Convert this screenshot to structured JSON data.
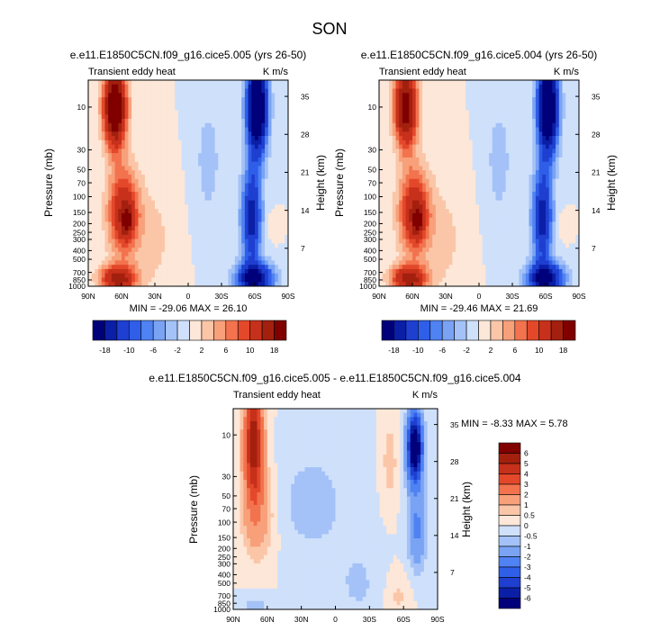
{
  "figure": {
    "title": "SON"
  },
  "colors": {
    "negative": [
      "#00007a",
      "#0a1fa6",
      "#1e3fd0",
      "#2f5ee8",
      "#4f82f2",
      "#7aa3f4",
      "#a4c2f7",
      "#cfe0fb"
    ],
    "positive": [
      "#fde7d8",
      "#fbc6a8",
      "#f7a07a",
      "#f2734e",
      "#e4482a",
      "#c7301b",
      "#a3200f",
      "#800000"
    ]
  },
  "chart_data": [
    {
      "type": "heatmap",
      "title": "e.e11.E1850C5CN.f09_g16.cice5.005 (yrs 26-50)",
      "left_label": "Transient eddy heat",
      "right_label": "K m/s",
      "xlabel": "",
      "ylabel": "Pressure (mb)",
      "ylabel_right": "Height (km)",
      "x_ticks": [
        "90N",
        "60N",
        "30N",
        "0",
        "30S",
        "60S",
        "90S"
      ],
      "y_ticks": [
        "10",
        "30",
        "50",
        "70",
        "100",
        "150",
        "200",
        "250",
        "300",
        "400",
        "500",
        "700",
        "850",
        "1000"
      ],
      "y_ticks_right": [
        "35",
        "28",
        "21",
        "14",
        "7"
      ],
      "min_max": "MIN = -29.06  MAX = 26.10",
      "colorbar": {
        "orientation": "horizontal",
        "labels": [
          "-18",
          "-10",
          "-6",
          "-2",
          "2",
          "6",
          "10",
          "18"
        ]
      },
      "features": [
        {
          "lat": 66,
          "p": 10,
          "value": 26
        },
        {
          "lat": 58,
          "p": 200,
          "value": 10
        },
        {
          "lat": 62,
          "p": 800,
          "value": 14
        },
        {
          "lat": -62,
          "p": 10,
          "value": -29
        },
        {
          "lat": -58,
          "p": 200,
          "value": -14
        },
        {
          "lat": -62,
          "p": 800,
          "value": -18
        }
      ]
    },
    {
      "type": "heatmap",
      "title": "e.e11.E1850C5CN.f09_g16.cice5.004 (yrs 26-50)",
      "left_label": "Transient eddy heat",
      "right_label": "K m/s",
      "xlabel": "",
      "ylabel": "Pressure (mb)",
      "ylabel_right": "Height (km)",
      "x_ticks": [
        "90N",
        "60N",
        "30N",
        "0",
        "30S",
        "60S",
        "90S"
      ],
      "y_ticks": [
        "10",
        "30",
        "50",
        "70",
        "100",
        "150",
        "200",
        "250",
        "300",
        "400",
        "500",
        "700",
        "850",
        "1000"
      ],
      "y_ticks_right": [
        "35",
        "28",
        "21",
        "14",
        "7"
      ],
      "min_max": "MIN = -29.46  MAX = 21.69",
      "colorbar": {
        "orientation": "horizontal",
        "labels": [
          "-18",
          "-10",
          "-6",
          "-2",
          "2",
          "6",
          "10",
          "18"
        ]
      },
      "features": [
        {
          "lat": 66,
          "p": 10,
          "value": 21.7
        },
        {
          "lat": 58,
          "p": 200,
          "value": 10
        },
        {
          "lat": 62,
          "p": 800,
          "value": 14
        },
        {
          "lat": -62,
          "p": 10,
          "value": -29.5
        },
        {
          "lat": -58,
          "p": 200,
          "value": -14
        },
        {
          "lat": -62,
          "p": 800,
          "value": -18
        }
      ]
    },
    {
      "type": "heatmap",
      "title": "e.e11.E1850C5CN.f09_g16.cice5.005 - e.e11.E1850C5CN.f09_g16.cice5.004",
      "left_label": "Transient eddy heat",
      "right_label": "K m/s",
      "xlabel": "",
      "ylabel": "Pressure (mb)",
      "ylabel_right": "Height (km)",
      "x_ticks": [
        "90N",
        "60N",
        "30N",
        "0",
        "30S",
        "60S",
        "90S"
      ],
      "y_ticks": [
        "10",
        "30",
        "50",
        "70",
        "100",
        "150",
        "200",
        "250",
        "300",
        "400",
        "500",
        "700",
        "850",
        "1000"
      ],
      "y_ticks_right": [
        "35",
        "28",
        "21",
        "14",
        "7"
      ],
      "min_max": "MIN =  -8.33  MAX =   5.78",
      "colorbar": {
        "orientation": "vertical",
        "labels": [
          "6",
          "5",
          "4",
          "3",
          "2",
          "1",
          "0.5",
          "0",
          "-0.5",
          "-1",
          "-2",
          "-3",
          "-4",
          "-5",
          "-6"
        ]
      },
      "features": [
        {
          "lat": 72,
          "p": 10,
          "value": 5.8
        },
        {
          "lat": -70,
          "p": 12,
          "value": -8.3
        },
        {
          "lat": -48,
          "p": 20,
          "value": 0.7
        },
        {
          "lat": 20,
          "p": 60,
          "value": -0.4
        },
        {
          "lat": 70,
          "p": 900,
          "value": -0.6
        }
      ]
    }
  ]
}
